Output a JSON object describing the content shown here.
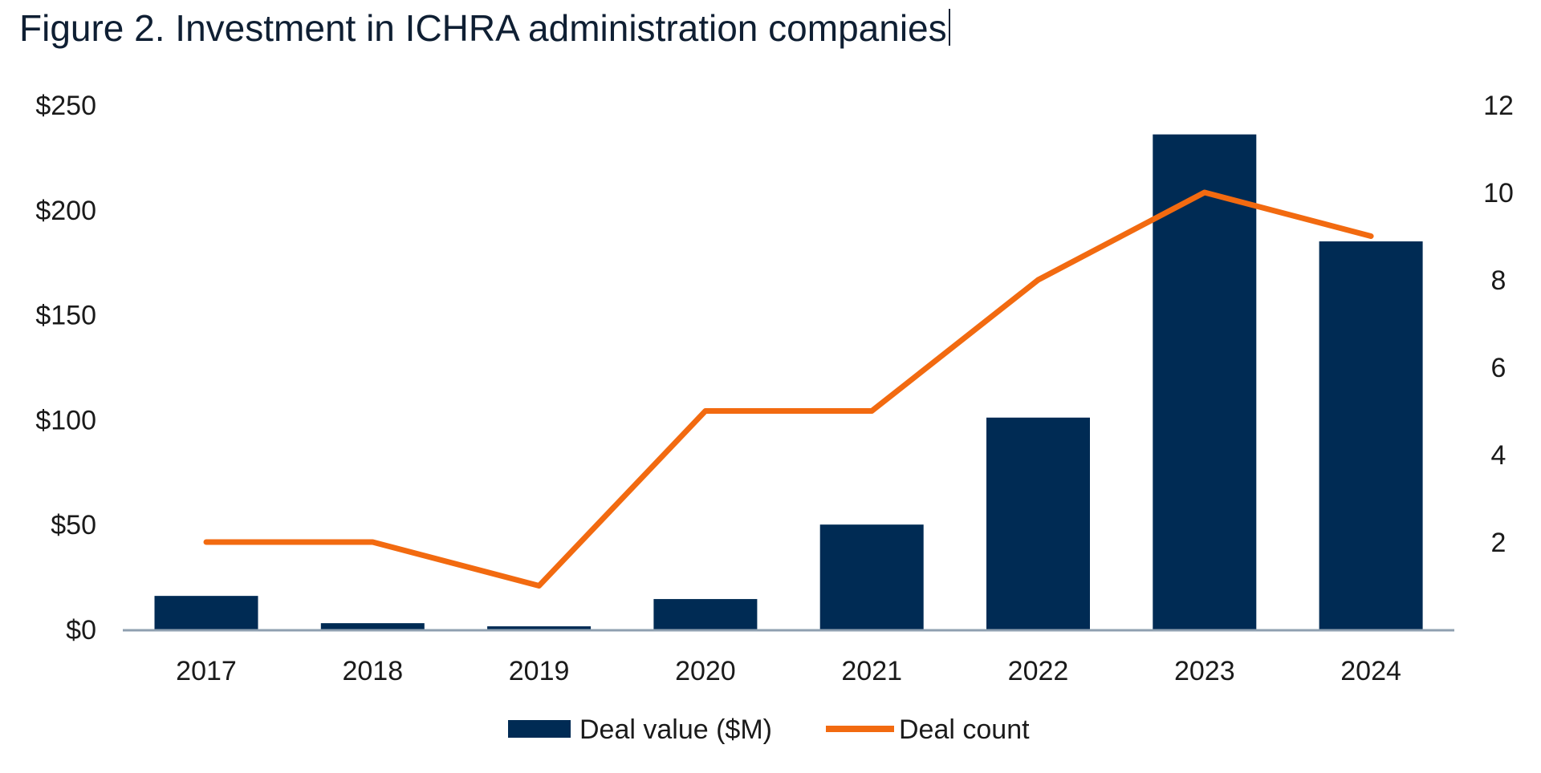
{
  "chart_data": {
    "type": "bar+line",
    "title": "Figure 2. Investment in ICHRA administration companies",
    "categories": [
      "2017",
      "2018",
      "2019",
      "2020",
      "2021",
      "2022",
      "2023",
      "2024"
    ],
    "series": [
      {
        "name": "Deal value ($M)",
        "type": "bar",
        "axis": "left",
        "color": "#002b54",
        "values": [
          16,
          3,
          1.5,
          14.5,
          50,
          101,
          236,
          185
        ]
      },
      {
        "name": "Deal count",
        "type": "line",
        "axis": "right",
        "color": "#f26a10",
        "values": [
          2,
          2,
          1,
          5,
          5,
          8,
          10,
          9
        ]
      }
    ],
    "y_left": {
      "ylim": [
        0,
        250
      ],
      "ticks": [
        0,
        50,
        100,
        150,
        200,
        250
      ],
      "tick_labels": [
        "$0",
        "$50",
        "$100",
        "$150",
        "$200",
        "$250"
      ]
    },
    "y_right": {
      "ylim": [
        0,
        12
      ],
      "ticks": [
        2,
        4,
        6,
        8,
        10,
        12
      ],
      "tick_labels": [
        "2",
        "4",
        "6",
        "8",
        "10",
        "12"
      ]
    },
    "grid": false,
    "legend": "bottom"
  }
}
